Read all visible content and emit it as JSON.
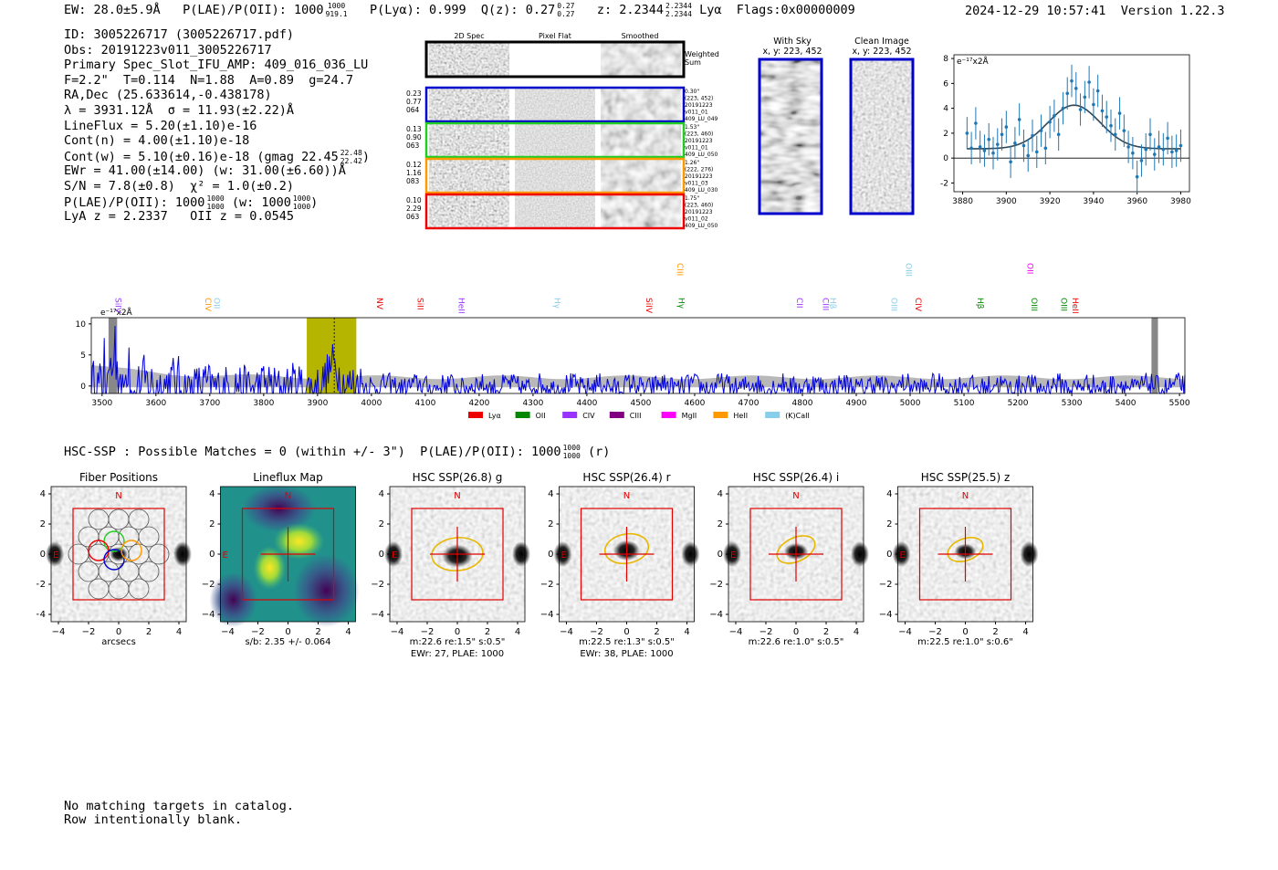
{
  "header": {
    "ew": "EW: 28.0±5.9Å",
    "plae": "P(LAE)/P(OII): 1000",
    "plae_hi": "1000",
    "plae_lo": "919.1",
    "plya": "P(Lyα): 0.999",
    "qz": "Q(z): 0.27",
    "qz_hi": "0.27",
    "qz_lo": "0.27",
    "z": "z: 2.2344",
    "z_hi": "2.2344",
    "z_lo": "2.2344",
    "line": "Lyα",
    "flags": "Flags:0x00000009",
    "datetime": "2024-12-29 10:57:41",
    "version": "Version 1.22.3"
  },
  "info": {
    "id": "ID: 3005226717 (3005226717.pdf)",
    "obs": "Obs: 20191223v011_3005226717",
    "primary": "Primary Spec_Slot_IFU_AMP: 409_016_036_LU",
    "params": "F=2.2\"  T=0.114  N=1.88  A=0.89  g=24.7",
    "radec": "RA,Dec (25.633614,-0.438178)",
    "lambda": "λ = 3931.12Å  σ = 11.93(±2.22)Å",
    "lineflux": "LineFlux = 5.20(±1.10)e-16",
    "contn": "Cont(n) = 4.00(±1.10)e-18",
    "contw": "Cont(w) = 5.10(±0.16)e-18 (gmag 22.45",
    "contw_hi": "22.48",
    "contw_lo": "22.42",
    "ewr": "EWr = 41.00(±14.00) (w: 31.00(±6.60))Å",
    "sn": "S/N = 7.8(±0.8)  χ² = 1.0(±0.2)",
    "plae": "P(LAE)/P(OII): 1000",
    "plae_w": "(w: 1000",
    "lya_z": "LyA z = 2.2337   OII z = 0.0545"
  },
  "cutouts": {
    "col_2d": "2D Spec",
    "col_flat": "Pixel Flat",
    "col_smooth": "Smoothed",
    "weighted": "Weighted",
    "sum": "Sum",
    "rows": [
      {
        "left": [
          "0.23",
          "0.77",
          "064"
        ],
        "right": [
          "0.30\"",
          "(223, 452)",
          "20191223",
          "v011_01",
          "409_LU_049"
        ],
        "color": "#0000cc"
      },
      {
        "left": [
          "0.13",
          "0.90",
          "063"
        ],
        "right": [
          "1.53\"",
          "(223, 460)",
          "20191223",
          "v011_01",
          "409_LU_050"
        ],
        "color": "#22cc22"
      },
      {
        "left": [
          "0.12",
          "1.16",
          "083"
        ],
        "right": [
          "1.26\"",
          "(222, 276)",
          "20191223",
          "v011_03",
          "409_LU_030"
        ],
        "color": "#ff9900"
      },
      {
        "left": [
          "0.10",
          "2.29",
          "063"
        ],
        "right": [
          "1.75\"",
          "(223, 460)",
          "20191223",
          "v011_02",
          "409_LU_050"
        ],
        "color": "#ee0000"
      }
    ],
    "with_sky": "With Sky",
    "clean_image": "Clean Image",
    "xy_sky": "x, y: 223, 452",
    "xy_clean": "x, y: 223, 452"
  },
  "fit_chart": {
    "type": "scatter",
    "unit_label": "e⁻¹⁷x2Å",
    "xlim": [
      3876,
      3984
    ],
    "ylim": [
      -2.7,
      8.3
    ],
    "xticks": [
      "3880",
      "3900",
      "3920",
      "3940",
      "3960",
      "3980"
    ],
    "yticks": [
      "-2",
      "0",
      "2",
      "4",
      "6",
      "8"
    ],
    "x": [
      3882,
      3884,
      3886,
      3888,
      3890,
      3892,
      3894,
      3896,
      3898,
      3900,
      3902,
      3904,
      3906,
      3908,
      3910,
      3912,
      3914,
      3916,
      3918,
      3920,
      3922,
      3924,
      3926,
      3928,
      3930,
      3932,
      3934,
      3936,
      3938,
      3940,
      3942,
      3944,
      3946,
      3948,
      3950,
      3952,
      3954,
      3956,
      3958,
      3960,
      3962,
      3964,
      3966,
      3968,
      3970,
      3972,
      3974,
      3976,
      3978,
      3980
    ],
    "y": [
      2.0,
      0.8,
      2.8,
      0.9,
      0.6,
      1.5,
      0.4,
      1.1,
      1.9,
      2.5,
      -0.3,
      1.2,
      3.1,
      1.0,
      0.2,
      1.8,
      0.5,
      2.2,
      0.8,
      2.9,
      3.4,
      1.9,
      4.0,
      5.2,
      6.2,
      5.6,
      3.9,
      4.9,
      6.1,
      4.3,
      5.4,
      3.8,
      3.3,
      2.6,
      1.9,
      3.6,
      2.2,
      0.9,
      0.4,
      -1.5,
      -0.2,
      0.7,
      1.9,
      0.3,
      0.9,
      0.7,
      1.6,
      0.5,
      0.6,
      1.0
    ],
    "yerr": 1.3,
    "fit": {
      "center": 3931.1,
      "sigma": 11.9,
      "amplitude": 3.5,
      "baseline": 0.75
    }
  },
  "spectrum_chart": {
    "type": "line",
    "unit_label": "e⁻¹⁷x2Å",
    "xlim": [
      3480,
      5510
    ],
    "ylim": [
      -1.2,
      11
    ],
    "xticks": [
      "3500",
      "3600",
      "3700",
      "3800",
      "3900",
      "4000",
      "4100",
      "4200",
      "4300",
      "4400",
      "4500",
      "4600",
      "4700",
      "4800",
      "4900",
      "5000",
      "5100",
      "5200",
      "5300",
      "5400",
      "5500"
    ],
    "yticks": [
      "0",
      "5",
      "10"
    ],
    "highlight": [
      3880,
      3972
    ],
    "line_wave": 3931,
    "masked": [
      [
        3512,
        3528
      ],
      [
        5448,
        5460
      ]
    ],
    "lines": [
      {
        "label": "SiIV",
        "wave": 3525,
        "color": "#9933ff",
        "row": 1
      },
      {
        "label": "CIV",
        "wave": 3692,
        "color": "#ff9900",
        "row": 1
      },
      {
        "label": "OII",
        "wave": 3708,
        "color": "#87ceeb",
        "row": 1
      },
      {
        "label": "NV",
        "wave": 4010,
        "color": "#ee0000",
        "row": 1
      },
      {
        "label": "SiII",
        "wave": 4086,
        "color": "#ee0000",
        "row": 1
      },
      {
        "label": "HeII",
        "wave": 4162,
        "color": "#9933ff",
        "row": 1
      },
      {
        "label": "Hγ",
        "wave": 4340,
        "color": "#87ceeb",
        "row": 1
      },
      {
        "label": "SiIV",
        "wave": 4510,
        "color": "#ee0000",
        "row": 1
      },
      {
        "label": "CIII",
        "wave": 4568,
        "color": "#ff9900",
        "row": 0
      },
      {
        "label": "Hγ",
        "wave": 4570,
        "color": "#008800",
        "row": 1
      },
      {
        "label": "CII",
        "wave": 4790,
        "color": "#9933ff",
        "row": 1
      },
      {
        "label": "CIII",
        "wave": 4838,
        "color": "#9933ff",
        "row": 1
      },
      {
        "label": "Hβ",
        "wave": 4852,
        "color": "#87ceeb",
        "row": 1
      },
      {
        "label": "OIII",
        "wave": 4965,
        "color": "#87ceeb",
        "row": 1
      },
      {
        "label": "OIII",
        "wave": 4992,
        "color": "#87ceeb",
        "row": 0
      },
      {
        "label": "CIV",
        "wave": 5010,
        "color": "#ee0000",
        "row": 1
      },
      {
        "label": "Hβ",
        "wave": 5125,
        "color": "#008800",
        "row": 1
      },
      {
        "label": "OII",
        "wave": 5218,
        "color": "#ee00ee",
        "row": 0
      },
      {
        "label": "OIII",
        "wave": 5225,
        "color": "#008800",
        "row": 1
      },
      {
        "label": "OIII",
        "wave": 5280,
        "color": "#008800",
        "row": 1
      },
      {
        "label": "HeII",
        "wave": 5302,
        "color": "#ee0000",
        "row": 1
      }
    ],
    "legend": [
      {
        "label": "Lyα",
        "color": "#ee0000"
      },
      {
        "label": "OII",
        "color": "#008800"
      },
      {
        "label": "CIV",
        "color": "#9933ff"
      },
      {
        "label": "CIII",
        "color": "#800080"
      },
      {
        "label": "MgII",
        "color": "#ff00ff"
      },
      {
        "label": "HeII",
        "color": "#ff9900"
      },
      {
        "label": "(K)CaII",
        "color": "#87ceeb"
      }
    ]
  },
  "hsc": {
    "summary": "HSC-SSP : Possible Matches = 0 (within +/- 3\")  P(LAE)/P(OII): 1000",
    "plae_hi": "1000",
    "plae_lo": "1000",
    "suffix": "(r)",
    "tick_labels": [
      "−4",
      "−2",
      "0",
      "2",
      "4"
    ],
    "north": "N",
    "east": "E",
    "panels": [
      {
        "title": "Fiber Positions",
        "captions": [
          "arcsecs"
        ]
      },
      {
        "title": "Lineflux Map",
        "captions": [
          "s/b: 2.35 +/- 0.064"
        ]
      },
      {
        "title": "HSC SSP(26.8) g",
        "captions": [
          "m:22.6  re:1.5\"  s:0.5\"",
          "EWr: 27, PLAE: 1000"
        ]
      },
      {
        "title": "HSC SSP(26.4) r",
        "captions": [
          "m:22.5  re:1.3\"  s:0.5\"",
          "EWr: 38, PLAE: 1000"
        ]
      },
      {
        "title": "HSC SSP(26.4) i",
        "captions": [
          "m:22.6  re:1.0\"  s:0.5\""
        ]
      },
      {
        "title": "HSC SSP(25.5) z",
        "captions": [
          "m:22.5  re:1.0\"  s:0.6\""
        ]
      }
    ]
  },
  "notes": {
    "line1": "No matching targets in catalog.",
    "line2": "Row intentionally blank."
  }
}
